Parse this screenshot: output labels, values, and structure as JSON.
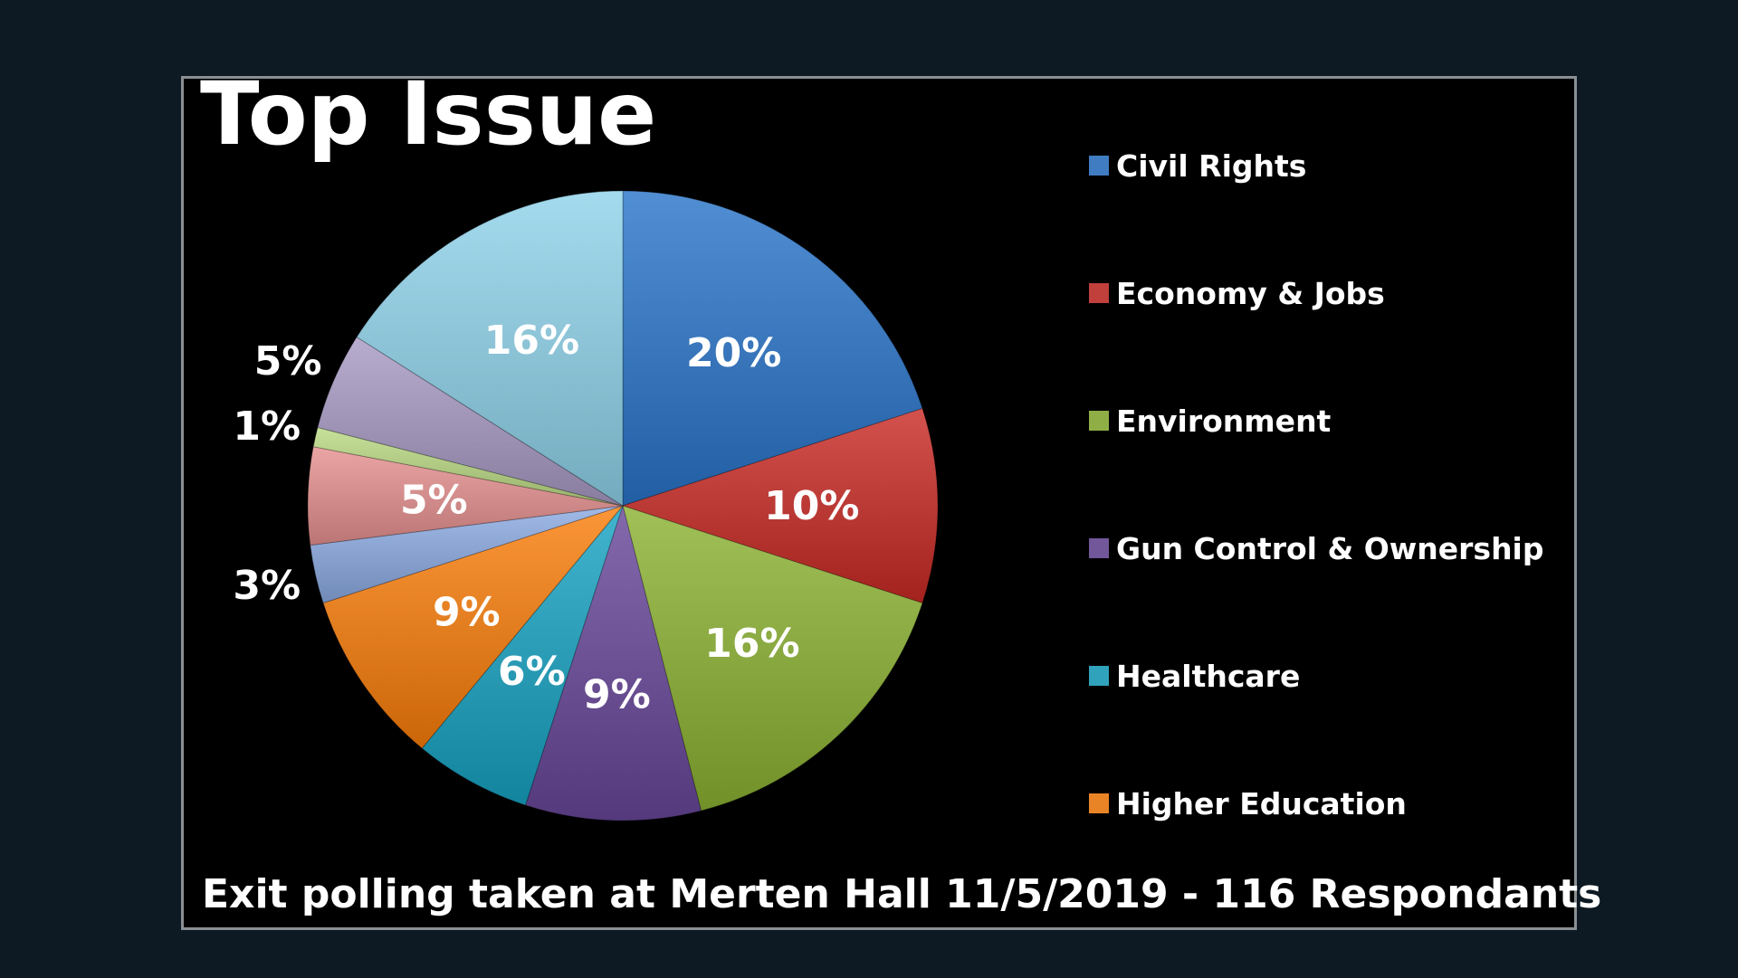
{
  "chart_data": {
    "type": "pie",
    "title": "Top Issue",
    "subtitle": "Exit polling taken at Merten Hall 11/5/2019 - 116 Respondants",
    "legend_position": "right",
    "slices": [
      {
        "name": "Civil Rights",
        "value": 20,
        "label": "20%",
        "color": "#3f7cc1"
      },
      {
        "name": "Economy & Jobs",
        "value": 10,
        "label": "10%",
        "color": "#c1403c"
      },
      {
        "name": "Environment",
        "value": 16,
        "label": "16%",
        "color": "#8fae46"
      },
      {
        "name": "Gun Control & Ownership",
        "value": 9,
        "label": "9%",
        "color": "#72579a"
      },
      {
        "name": "Healthcare",
        "value": 6,
        "label": "6%",
        "color": "#31a2bc"
      },
      {
        "name": "Higher Education",
        "value": 9,
        "label": "9%",
        "color": "#e98426"
      },
      {
        "name": "",
        "value": 3,
        "label": "3%",
        "color": "#8fa8d6"
      },
      {
        "name": "",
        "value": 5,
        "label": "5%",
        "color": "#d89392"
      },
      {
        "name": "",
        "value": 1,
        "label": "1%",
        "color": "#b5cf89"
      },
      {
        "name": "",
        "value": 5,
        "label": "5%",
        "color": "#a69bbd"
      },
      {
        "name": "",
        "value": 16,
        "label": "16%",
        "color": "#92c9dc"
      }
    ]
  }
}
